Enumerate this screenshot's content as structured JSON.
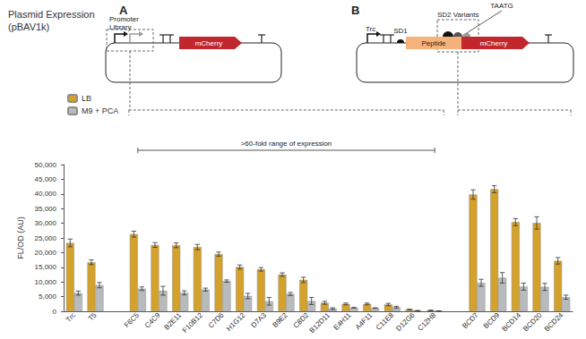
{
  "chart_data": {
    "type": "bar",
    "title": "Plasmid Expression\n(pBAV1k)",
    "y_label": "FL/OD (AU)",
    "categories": [
      "Trc",
      "T5",
      null,
      "F6C5",
      "C4C9",
      "B2E11",
      "F10B12",
      "C7D6",
      "H1G12",
      "D7A3",
      "B9E2",
      "C8D2",
      "B12D11",
      "E4H11",
      "A4F11",
      "C11E8",
      "D12G6",
      "C12H8",
      null,
      "BCD7",
      "BCD9",
      "BCD14",
      "BCD20",
      "BCD24"
    ],
    "series": [
      {
        "name": "LB",
        "color": "#D4A12A",
        "values": [
          23300,
          16700,
          null,
          26300,
          22600,
          22500,
          21900,
          19500,
          15100,
          14300,
          12500,
          10700,
          2900,
          2500,
          2500,
          2300,
          600,
          300,
          null,
          39800,
          41600,
          30400,
          30100,
          17200
        ],
        "errors": [
          1300,
          800,
          null,
          1000,
          800,
          800,
          900,
          700,
          700,
          600,
          600,
          900,
          500,
          300,
          300,
          400,
          100,
          100,
          null,
          1600,
          1200,
          1200,
          2100,
          1100
        ]
      },
      {
        "name": "M9 + PCA",
        "color": "#B8BBBD",
        "values": [
          6200,
          8900,
          null,
          7700,
          7000,
          6300,
          7400,
          10300,
          5200,
          3400,
          5900,
          3500,
          900,
          1200,
          1100,
          1400,
          200,
          100,
          null,
          9700,
          11400,
          8400,
          8300,
          4800
        ],
        "errors": [
          700,
          900,
          null,
          600,
          1500,
          700,
          500,
          400,
          900,
          1300,
          500,
          1200,
          300,
          100,
          100,
          300,
          100,
          50,
          null,
          1200,
          1800,
          1200,
          1200,
          700
        ]
      }
    ],
    "ylim": [
      0,
      50000
    ],
    "yticks": [
      0,
      {
        "value": 5000,
        "label": "5,000"
      },
      {
        "value": 10000,
        "label": "10,000"
      },
      {
        "value": 15000,
        "label": "15,000"
      },
      {
        "value": 20000,
        "label": "20,000"
      },
      {
        "value": 25000,
        "label": "25,000"
      },
      {
        "value": 30000,
        "label": "30,000"
      },
      {
        "value": 35000,
        "label": "35,000"
      },
      {
        "value": 40000,
        "label": "40,000"
      },
      {
        "value": 45000,
        "label": "45,000"
      },
      {
        "value": 50000,
        "label": "50,000"
      }
    ],
    "grid": false,
    "legend": "upper left",
    "annotations": [
      {
        "text": ">60-fold range of expression",
        "from": "F6C5",
        "to": "C12H8"
      }
    ],
    "panels": [
      {
        "label": "A",
        "title": "Promoter\nLibrary",
        "insert": "mCherry",
        "from": "F6C5",
        "to": "C12H8"
      },
      {
        "label": "B",
        "promoter": "Trc",
        "rbs": "SD1",
        "variants": "SD2 Variants",
        "codon": "TAATG",
        "fusion": "Peptide",
        "insert": "mCherry",
        "from": "BCD7",
        "to": "BCD24"
      }
    ]
  }
}
